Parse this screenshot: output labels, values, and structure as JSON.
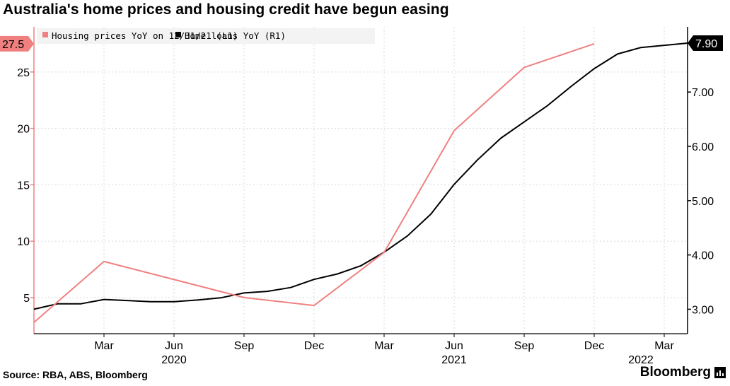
{
  "chart_data": {
    "type": "line",
    "title": "Australia's home prices and housing credit have begun easing",
    "x_tick_labels": [
      "Mar",
      "Jun",
      "Sep",
      "Dec",
      "Mar",
      "Jun",
      "Sep",
      "Dec",
      "Mar"
    ],
    "x_tick_dates": [
      "2020-03",
      "2020-06",
      "2020-09",
      "2020-12",
      "2021-03",
      "2021-06",
      "2021-09",
      "2021-12",
      "2022-03"
    ],
    "year_labels": [
      {
        "label": "2020",
        "date": "2020-06"
      },
      {
        "label": "2021",
        "date": "2021-06"
      },
      {
        "label": "2022",
        "date": "2022-02"
      }
    ],
    "xlim": [
      "2019-12",
      "2022-04"
    ],
    "left_axis": {
      "ticks": [
        5,
        10,
        15,
        20,
        25
      ],
      "ylim": [
        1.8,
        29
      ]
    },
    "right_axis": {
      "ticks": [
        "3.00",
        "4.00",
        "5.00",
        "6.00",
        "7.00"
      ],
      "ylim": [
        2.55,
        8.2
      ]
    },
    "grid": true,
    "legend_position": "top-left",
    "series": [
      {
        "name": "Home loans YoY (R1)",
        "axis": "right",
        "color": "#000000",
        "last_value_label": "7.90",
        "x": [
          "2019-12",
          "2020-01",
          "2020-02",
          "2020-03",
          "2020-04",
          "2020-05",
          "2020-06",
          "2020-07",
          "2020-08",
          "2020-09",
          "2020-10",
          "2020-11",
          "2020-12",
          "2021-01",
          "2021-02",
          "2021-03",
          "2021-04",
          "2021-05",
          "2021-06",
          "2021-07",
          "2021-08",
          "2021-09",
          "2021-10",
          "2021-11",
          "2021-12",
          "2022-01",
          "2022-02",
          "2022-03",
          "2022-04"
        ],
        "y": [
          3.0,
          3.1,
          3.1,
          3.18,
          3.16,
          3.14,
          3.14,
          3.17,
          3.21,
          3.3,
          3.33,
          3.4,
          3.55,
          3.65,
          3.8,
          4.05,
          4.35,
          4.75,
          5.3,
          5.75,
          6.15,
          6.45,
          6.75,
          7.1,
          7.43,
          7.7,
          7.82,
          7.86,
          7.9
        ]
      },
      {
        "name": "Housing prices YoY on 12/31/21 (L1)",
        "axis": "left",
        "color": "#f08080",
        "last_value_label": "27.5",
        "x": [
          "2019-12",
          "2020-03",
          "2020-06",
          "2020-09",
          "2020-12",
          "2021-03",
          "2021-06",
          "2021-09",
          "2021-12"
        ],
        "y": [
          2.8,
          8.2,
          6.6,
          5.0,
          4.3,
          9.0,
          19.8,
          25.4,
          27.5
        ]
      }
    ]
  },
  "footer": {
    "source": "Source: RBA, ABS, Bloomberg",
    "brand": "Bloomberg"
  }
}
